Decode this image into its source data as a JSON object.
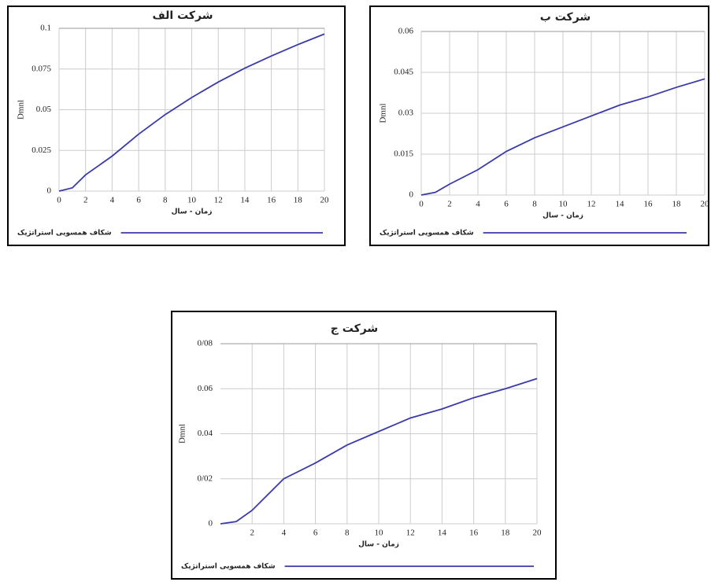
{
  "chart_data": [
    {
      "type": "line",
      "title": "شرکت الف",
      "ylabel": "Dmnl",
      "xlabel": "زمان - سال",
      "x": [
        0,
        1,
        2,
        4,
        6,
        8,
        10,
        12,
        14,
        16,
        18,
        20
      ],
      "series": [
        {
          "name": "شکاف همسویی استراتژیک",
          "color": "#3a3aa8",
          "values": [
            0,
            0.002,
            0.01,
            0.0215,
            0.035,
            0.047,
            0.0575,
            0.067,
            0.0755,
            0.083,
            0.09,
            0.0965
          ]
        }
      ],
      "xlim": [
        0,
        20
      ],
      "xticks": [
        0,
        2,
        4,
        6,
        8,
        10,
        12,
        14,
        16,
        18,
        20
      ],
      "ylim": [
        0,
        0.1
      ],
      "yticks": [
        0,
        0.025,
        0.05,
        0.075,
        0.1
      ],
      "grid": true,
      "legend": "bottom"
    },
    {
      "type": "line",
      "title": "شرکت ب",
      "ylabel": "Dmnl",
      "xlabel": "زمان - سال",
      "x": [
        0,
        1,
        2,
        4,
        6,
        8,
        10,
        12,
        14,
        16,
        18,
        20
      ],
      "series": [
        {
          "name": "شکاف همسویی استراتژیک",
          "color": "#3a3aa8",
          "values": [
            0,
            0.001,
            0.004,
            0.0093,
            0.016,
            0.021,
            0.025,
            0.029,
            0.033,
            0.036,
            0.0395,
            0.0426
          ]
        }
      ],
      "xlim": [
        0,
        20
      ],
      "xticks": [
        0,
        2,
        4,
        6,
        8,
        10,
        12,
        14,
        16,
        18,
        20
      ],
      "ylim": [
        0,
        0.06
      ],
      "yticks": [
        0,
        0.015,
        0.03,
        0.045,
        0.06
      ],
      "grid": true,
      "legend": "bottom"
    },
    {
      "type": "line",
      "title": "شرکت ج",
      "ylabel": "Dmnl",
      "xlabel": "زمان - سال",
      "x": [
        0,
        1,
        2,
        4,
        6,
        8,
        10,
        12,
        14,
        16,
        18,
        20
      ],
      "series": [
        {
          "name": "شکاف همسویی استراتژیک",
          "color": "#3a3aa8",
          "values": [
            0,
            0.001,
            0.006,
            0.02,
            0.027,
            0.035,
            0.041,
            0.047,
            0.051,
            0.056,
            0.06,
            0.0645
          ]
        }
      ],
      "xlim": [
        0,
        20
      ],
      "xticks": [
        2,
        4,
        6,
        8,
        10,
        12,
        14,
        16,
        18,
        20
      ],
      "ylim": [
        0,
        0.08
      ],
      "yticks": [
        0,
        {
          "value": 0.02,
          "label": "0/02"
        },
        0.04,
        0.06,
        {
          "value": 0.08,
          "label": "0/08"
        }
      ],
      "grid": true,
      "legend": "bottom"
    }
  ]
}
